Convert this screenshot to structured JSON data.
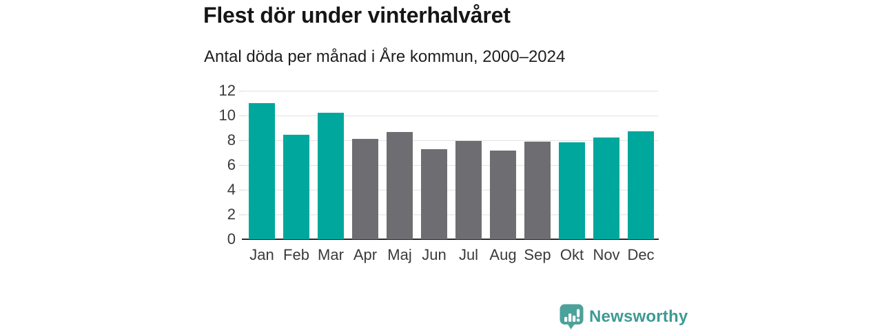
{
  "header": {
    "title": "Flest dör under vinterhalvåret",
    "subtitle": "Antal döda per månad i Åre kommun, 2000–2024"
  },
  "chart_data": {
    "type": "bar",
    "title": "Flest dör under vinterhalvåret",
    "subtitle": "Antal döda per månad i Åre kommun, 2000–2024",
    "categories": [
      "Jan",
      "Feb",
      "Mar",
      "Apr",
      "Maj",
      "Jun",
      "Jul",
      "Aug",
      "Sep",
      "Okt",
      "Nov",
      "Dec"
    ],
    "values": [
      11.0,
      8.45,
      10.2,
      8.1,
      8.65,
      7.3,
      7.95,
      7.15,
      7.9,
      7.85,
      8.25,
      8.75
    ],
    "bar_colors": [
      "#00a79c",
      "#00a79c",
      "#00a79c",
      "#6e6e72",
      "#6e6e72",
      "#6e6e72",
      "#6e6e72",
      "#6e6e72",
      "#6e6e72",
      "#00a79c",
      "#00a79c",
      "#00a79c"
    ],
    "color_meaning": {
      "winter_half_year": "#00a79c",
      "summer_half_year": "#6e6e72"
    },
    "xlabel": "",
    "ylabel": "",
    "ylim": [
      0,
      12
    ],
    "yticks": [
      0,
      2,
      4,
      6,
      8,
      10,
      12
    ],
    "ytick_labels": [
      "0",
      "2",
      "4",
      "6",
      "8",
      "10",
      "12"
    ],
    "grid": true,
    "legend": false
  },
  "footer": {
    "brand": "Newsworthy",
    "brand_color": "#3d9a94",
    "logo_icon": "newsworthy-speech-bubble-bar-chart-icon",
    "logo_color": "#4ba29b"
  },
  "colors": {
    "background": "#ffffff",
    "bar_teal": "#00a79c",
    "bar_gray": "#6e6e72",
    "gridline": "#e2e2e2",
    "axis_line": "#2a2a2a",
    "title_text": "#161616",
    "axis_text": "#3a3a3a"
  }
}
